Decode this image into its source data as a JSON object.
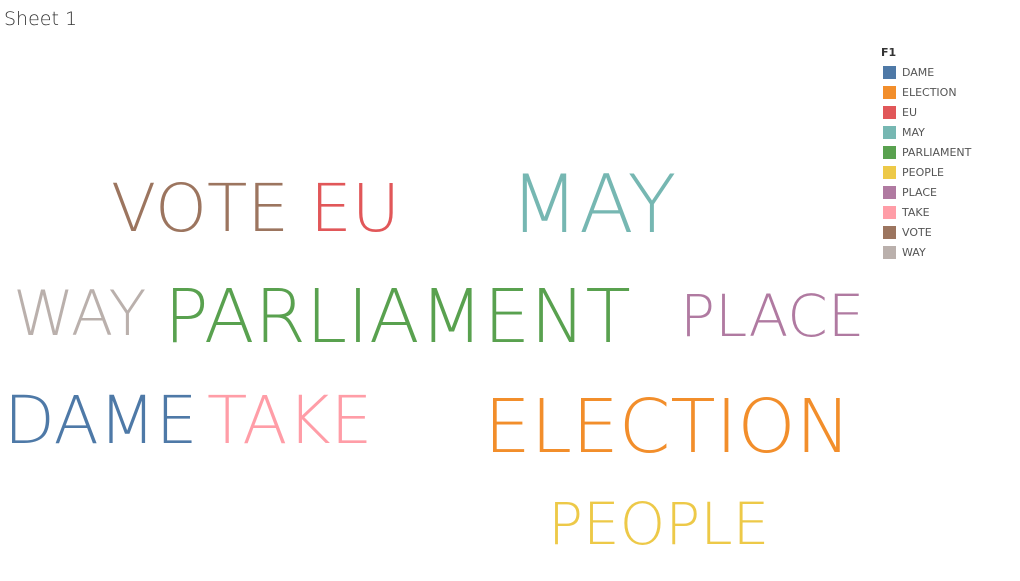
{
  "sheet": {
    "title": "Sheet 1"
  },
  "legend": {
    "title": "F1",
    "items": [
      {
        "label": "DAME",
        "color": "#4e79a7"
      },
      {
        "label": "ELECTION",
        "color": "#f28e2b"
      },
      {
        "label": "EU",
        "color": "#e15759"
      },
      {
        "label": "MAY",
        "color": "#76b7b2"
      },
      {
        "label": "PARLIAMENT",
        "color": "#59a14f"
      },
      {
        "label": "PEOPLE",
        "color": "#edc948"
      },
      {
        "label": "PLACE",
        "color": "#b07aa1"
      },
      {
        "label": "TAKE",
        "color": "#ff9da7"
      },
      {
        "label": "VOTE",
        "color": "#9c755f"
      },
      {
        "label": "WAY",
        "color": "#bab0ac"
      }
    ]
  },
  "chart_data": {
    "type": "word-cloud",
    "title": "Sheet 1",
    "field": "F1",
    "words": [
      {
        "text": "VOTE",
        "color": "#9c755f"
      },
      {
        "text": "EU",
        "color": "#e15759"
      },
      {
        "text": "MAY",
        "color": "#76b7b2"
      },
      {
        "text": "WAY",
        "color": "#bab0ac"
      },
      {
        "text": "PARLIAMENT",
        "color": "#59a14f"
      },
      {
        "text": "PLACE",
        "color": "#b07aa1"
      },
      {
        "text": "DAME",
        "color": "#4e79a7"
      },
      {
        "text": "TAKE",
        "color": "#ff9da7"
      },
      {
        "text": "ELECTION",
        "color": "#f28e2b"
      },
      {
        "text": "PEOPLE",
        "color": "#edc948"
      }
    ]
  }
}
